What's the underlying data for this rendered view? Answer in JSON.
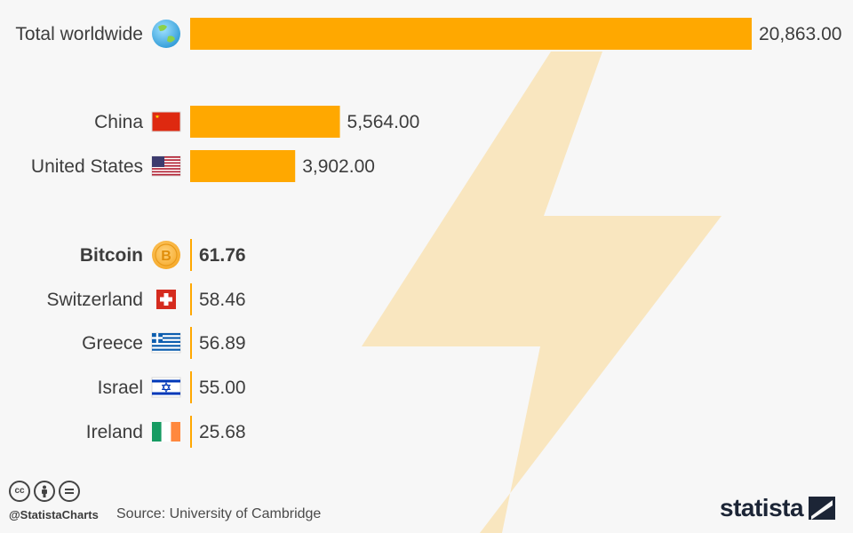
{
  "colors": {
    "bar": "#ffa800",
    "bolt": "#f9e6bf",
    "background": "#f7f7f7",
    "text": "#3c3c3c"
  },
  "chart_data": {
    "type": "bar",
    "orientation": "horizontal",
    "categories": [
      "Total worldwide",
      "China",
      "United States",
      "Bitcoin",
      "Switzerland",
      "Greece",
      "Israel",
      "Ireland"
    ],
    "values": [
      20863.0,
      5564.0,
      3902.0,
      61.76,
      58.46,
      56.89,
      55.0,
      25.68
    ],
    "value_labels": [
      "20,863.00",
      "5,564.00",
      "3,902.00",
      "61.76",
      "58.46",
      "56.89",
      "55.00",
      "25.68"
    ],
    "icons": [
      "globe-icon",
      "china-flag-icon",
      "usa-flag-icon",
      "bitcoin-coin-icon",
      "switzerland-flag-icon",
      "greece-flag-icon",
      "israel-flag-icon",
      "ireland-flag-icon"
    ],
    "highlight": "Bitcoin",
    "xlim": [
      0,
      20863
    ],
    "grid": false,
    "legend": "none"
  },
  "footer": {
    "handle": "@StatistaCharts",
    "source": "Source: University of Cambridge",
    "brand": "statista",
    "license_icons": [
      "cc-icon",
      "attribution-icon",
      "no-derivatives-icon"
    ]
  }
}
